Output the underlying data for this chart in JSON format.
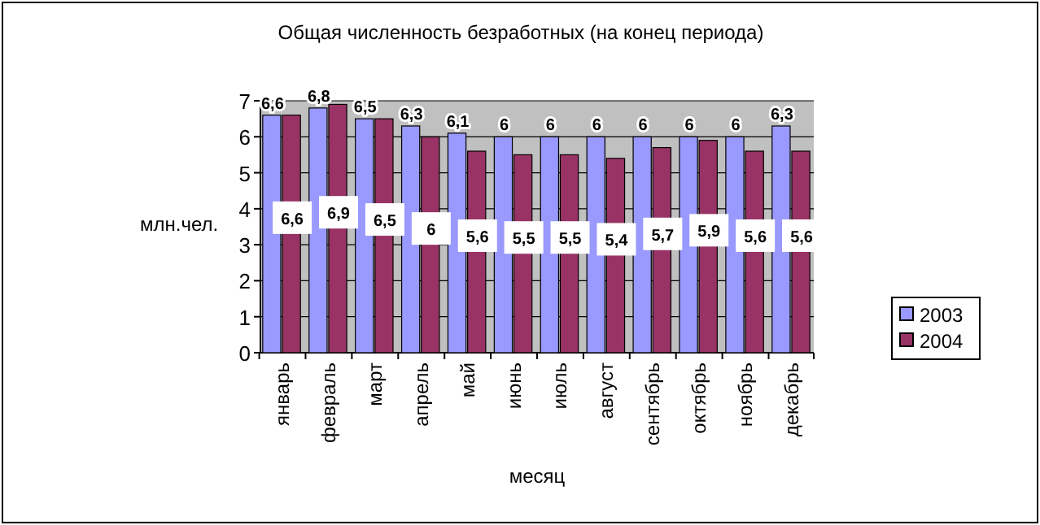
{
  "chart_data": {
    "type": "bar",
    "title": "Общая численность безработных (на конец периода)",
    "xlabel": "месяц",
    "ylabel": "млн.чел.",
    "categories": [
      "январь",
      "февраль",
      "март",
      "апрель",
      "май",
      "июнь",
      "июль",
      "август",
      "сентябрь",
      "октябрь",
      "ноябрь",
      "декабрь"
    ],
    "series": [
      {
        "name": "2003",
        "color": "#9999ff",
        "values": [
          6.6,
          6.8,
          6.5,
          6.3,
          6.1,
          6,
          6,
          6,
          6,
          6,
          6,
          6.3
        ],
        "value_labels": [
          "6,6",
          "6,8",
          "6,5",
          "6,3",
          "6,1",
          "6",
          "6",
          "6",
          "6",
          "6",
          "6",
          "6,3"
        ]
      },
      {
        "name": "2004",
        "color": "#993366",
        "values": [
          6.6,
          6.9,
          6.5,
          6,
          5.6,
          5.5,
          5.5,
          5.4,
          5.7,
          5.9,
          5.6,
          5.6
        ],
        "value_labels": [
          "6,6",
          "6,9",
          "6,5",
          "6",
          "5,6",
          "5,5",
          "5,5",
          "5,4",
          "5,7",
          "5,9",
          "5,6",
          "5,6"
        ]
      }
    ],
    "ylim": [
      0,
      7
    ],
    "yticks": [
      0,
      1,
      2,
      3,
      4,
      5,
      6,
      7
    ],
    "grid": "y",
    "legend": "right"
  }
}
